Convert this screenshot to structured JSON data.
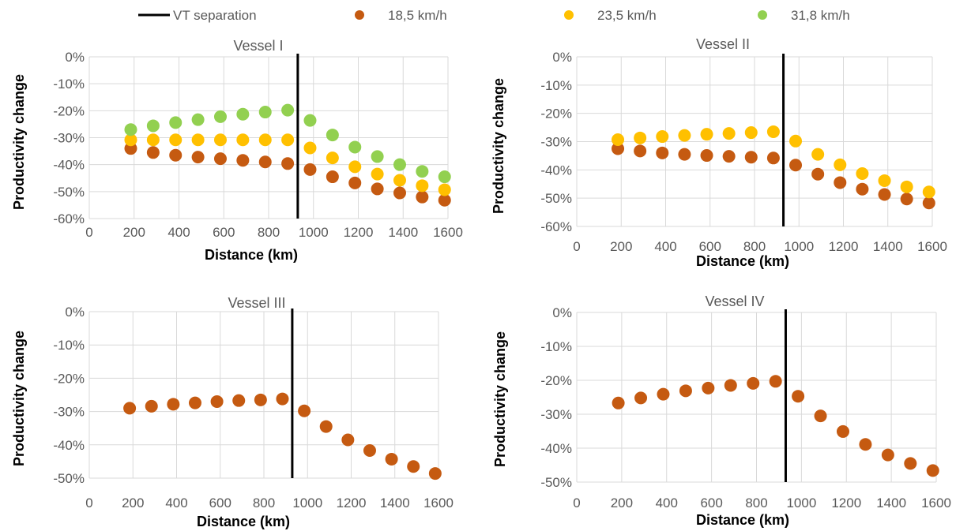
{
  "legend": [
    {
      "name": "VT separation",
      "kind": "line",
      "color": "#000000"
    },
    {
      "name": "18,5 km/h",
      "kind": "marker",
      "color": "#C55A11"
    },
    {
      "name": "23,5 km/h",
      "kind": "marker",
      "color": "#FFC000"
    },
    {
      "name": "31,8 km/h",
      "kind": "marker",
      "color": "#92D050"
    }
  ],
  "chart_data": [
    {
      "type": "scatter",
      "title": "Vessel I",
      "xlabel": "Distance (km)",
      "ylabel": "Productivity change",
      "xlim": [
        0,
        1600
      ],
      "ylim": [
        -0.6,
        0
      ],
      "xticks": [
        "0",
        "200",
        "400",
        "600",
        "800",
        "1000",
        "1200",
        "1400",
        "1600"
      ],
      "yticks": [
        "0%",
        "-10%",
        "-20%",
        "-30%",
        "-40%",
        "-50%",
        "-60%"
      ],
      "grid": true,
      "vt_separation_x": 930,
      "x": [
        185,
        285,
        385,
        485,
        585,
        685,
        785,
        885,
        985,
        1085,
        1185,
        1285,
        1385,
        1485,
        1585
      ],
      "series": [
        {
          "name": "18,5 km/h",
          "color": "#C55A11",
          "values": [
            -0.34,
            -0.355,
            -0.365,
            -0.372,
            -0.378,
            -0.384,
            -0.39,
            -0.396,
            -0.418,
            -0.445,
            -0.468,
            -0.49,
            -0.505,
            -0.52,
            -0.532
          ]
        },
        {
          "name": "23,5 km/h",
          "color": "#FFC000",
          "values": [
            -0.308,
            -0.308,
            -0.308,
            -0.308,
            -0.308,
            -0.308,
            -0.308,
            -0.308,
            -0.338,
            -0.375,
            -0.408,
            -0.435,
            -0.458,
            -0.478,
            -0.493
          ]
        },
        {
          "name": "31,8 km/h",
          "color": "#92D050",
          "values": [
            -0.27,
            -0.256,
            -0.244,
            -0.233,
            -0.222,
            -0.213,
            -0.205,
            -0.198,
            -0.236,
            -0.29,
            -0.335,
            -0.37,
            -0.4,
            -0.425,
            -0.445
          ]
        }
      ]
    },
    {
      "type": "scatter",
      "title": "Vessel II",
      "xlabel": "Distance (km)",
      "ylabel": "Productivity change",
      "xlim": [
        0,
        1600
      ],
      "ylim": [
        -0.6,
        0
      ],
      "xticks": [
        "0",
        "200",
        "400",
        "600",
        "800",
        "1000",
        "1200",
        "1400",
        "1600"
      ],
      "yticks": [
        "0%",
        "-10%",
        "-20%",
        "-30%",
        "-40%",
        "-50%",
        "-60%"
      ],
      "grid": true,
      "vt_separation_x": 930,
      "x": [
        185,
        285,
        385,
        485,
        585,
        685,
        785,
        885,
        985,
        1085,
        1185,
        1285,
        1385,
        1485,
        1585
      ],
      "series": [
        {
          "name": "18,5 km/h",
          "color": "#C55A11",
          "values": [
            -0.325,
            -0.333,
            -0.34,
            -0.345,
            -0.349,
            -0.352,
            -0.355,
            -0.358,
            -0.383,
            -0.415,
            -0.445,
            -0.468,
            -0.487,
            -0.503,
            -0.517
          ]
        },
        {
          "name": "23,5 km/h",
          "color": "#FFC000",
          "values": [
            -0.293,
            -0.287,
            -0.282,
            -0.278,
            -0.274,
            -0.271,
            -0.268,
            -0.265,
            -0.298,
            -0.345,
            -0.382,
            -0.413,
            -0.438,
            -0.46,
            -0.478
          ]
        }
      ]
    },
    {
      "type": "scatter",
      "title": "Vessel III",
      "xlabel": "Distance (km)",
      "ylabel": "Productivity change",
      "xlim": [
        0,
        1600
      ],
      "ylim": [
        -0.5,
        0
      ],
      "xticks": [
        "0",
        "200",
        "400",
        "600",
        "800",
        "1000",
        "1200",
        "1400",
        "1600"
      ],
      "yticks": [
        "0%",
        "-10%",
        "-20%",
        "-30%",
        "-40%",
        "-50%"
      ],
      "grid": true,
      "vt_separation_x": 930,
      "x": [
        185,
        285,
        385,
        485,
        585,
        685,
        785,
        885,
        985,
        1085,
        1185,
        1285,
        1385,
        1485,
        1585
      ],
      "series": [
        {
          "name": "18,5 km/h",
          "color": "#C55A11",
          "values": [
            -0.29,
            -0.284,
            -0.278,
            -0.274,
            -0.27,
            -0.267,
            -0.265,
            -0.262,
            -0.298,
            -0.345,
            -0.385,
            -0.417,
            -0.443,
            -0.465,
            -0.486
          ]
        }
      ]
    },
    {
      "type": "scatter",
      "title": "Vessel IV",
      "xlabel": "Distance (km)",
      "ylabel": "Productivity change",
      "xlim": [
        0,
        1600
      ],
      "ylim": [
        -0.5,
        0
      ],
      "xticks": [
        "0",
        "200",
        "400",
        "600",
        "800",
        "1000",
        "1200",
        "1400",
        "1600"
      ],
      "yticks": [
        "0%",
        "-10%",
        "-20%",
        "-30%",
        "-40%",
        "-50%"
      ],
      "grid": true,
      "vt_separation_x": 930,
      "x": [
        185,
        285,
        385,
        485,
        585,
        685,
        785,
        885,
        985,
        1085,
        1185,
        1285,
        1385,
        1485,
        1585
      ],
      "series": [
        {
          "name": "18,5 km/h",
          "color": "#C55A11",
          "values": [
            -0.267,
            -0.252,
            -0.241,
            -0.231,
            -0.223,
            -0.215,
            -0.209,
            -0.203,
            -0.247,
            -0.305,
            -0.351,
            -0.389,
            -0.42,
            -0.445,
            -0.466
          ]
        }
      ]
    }
  ]
}
